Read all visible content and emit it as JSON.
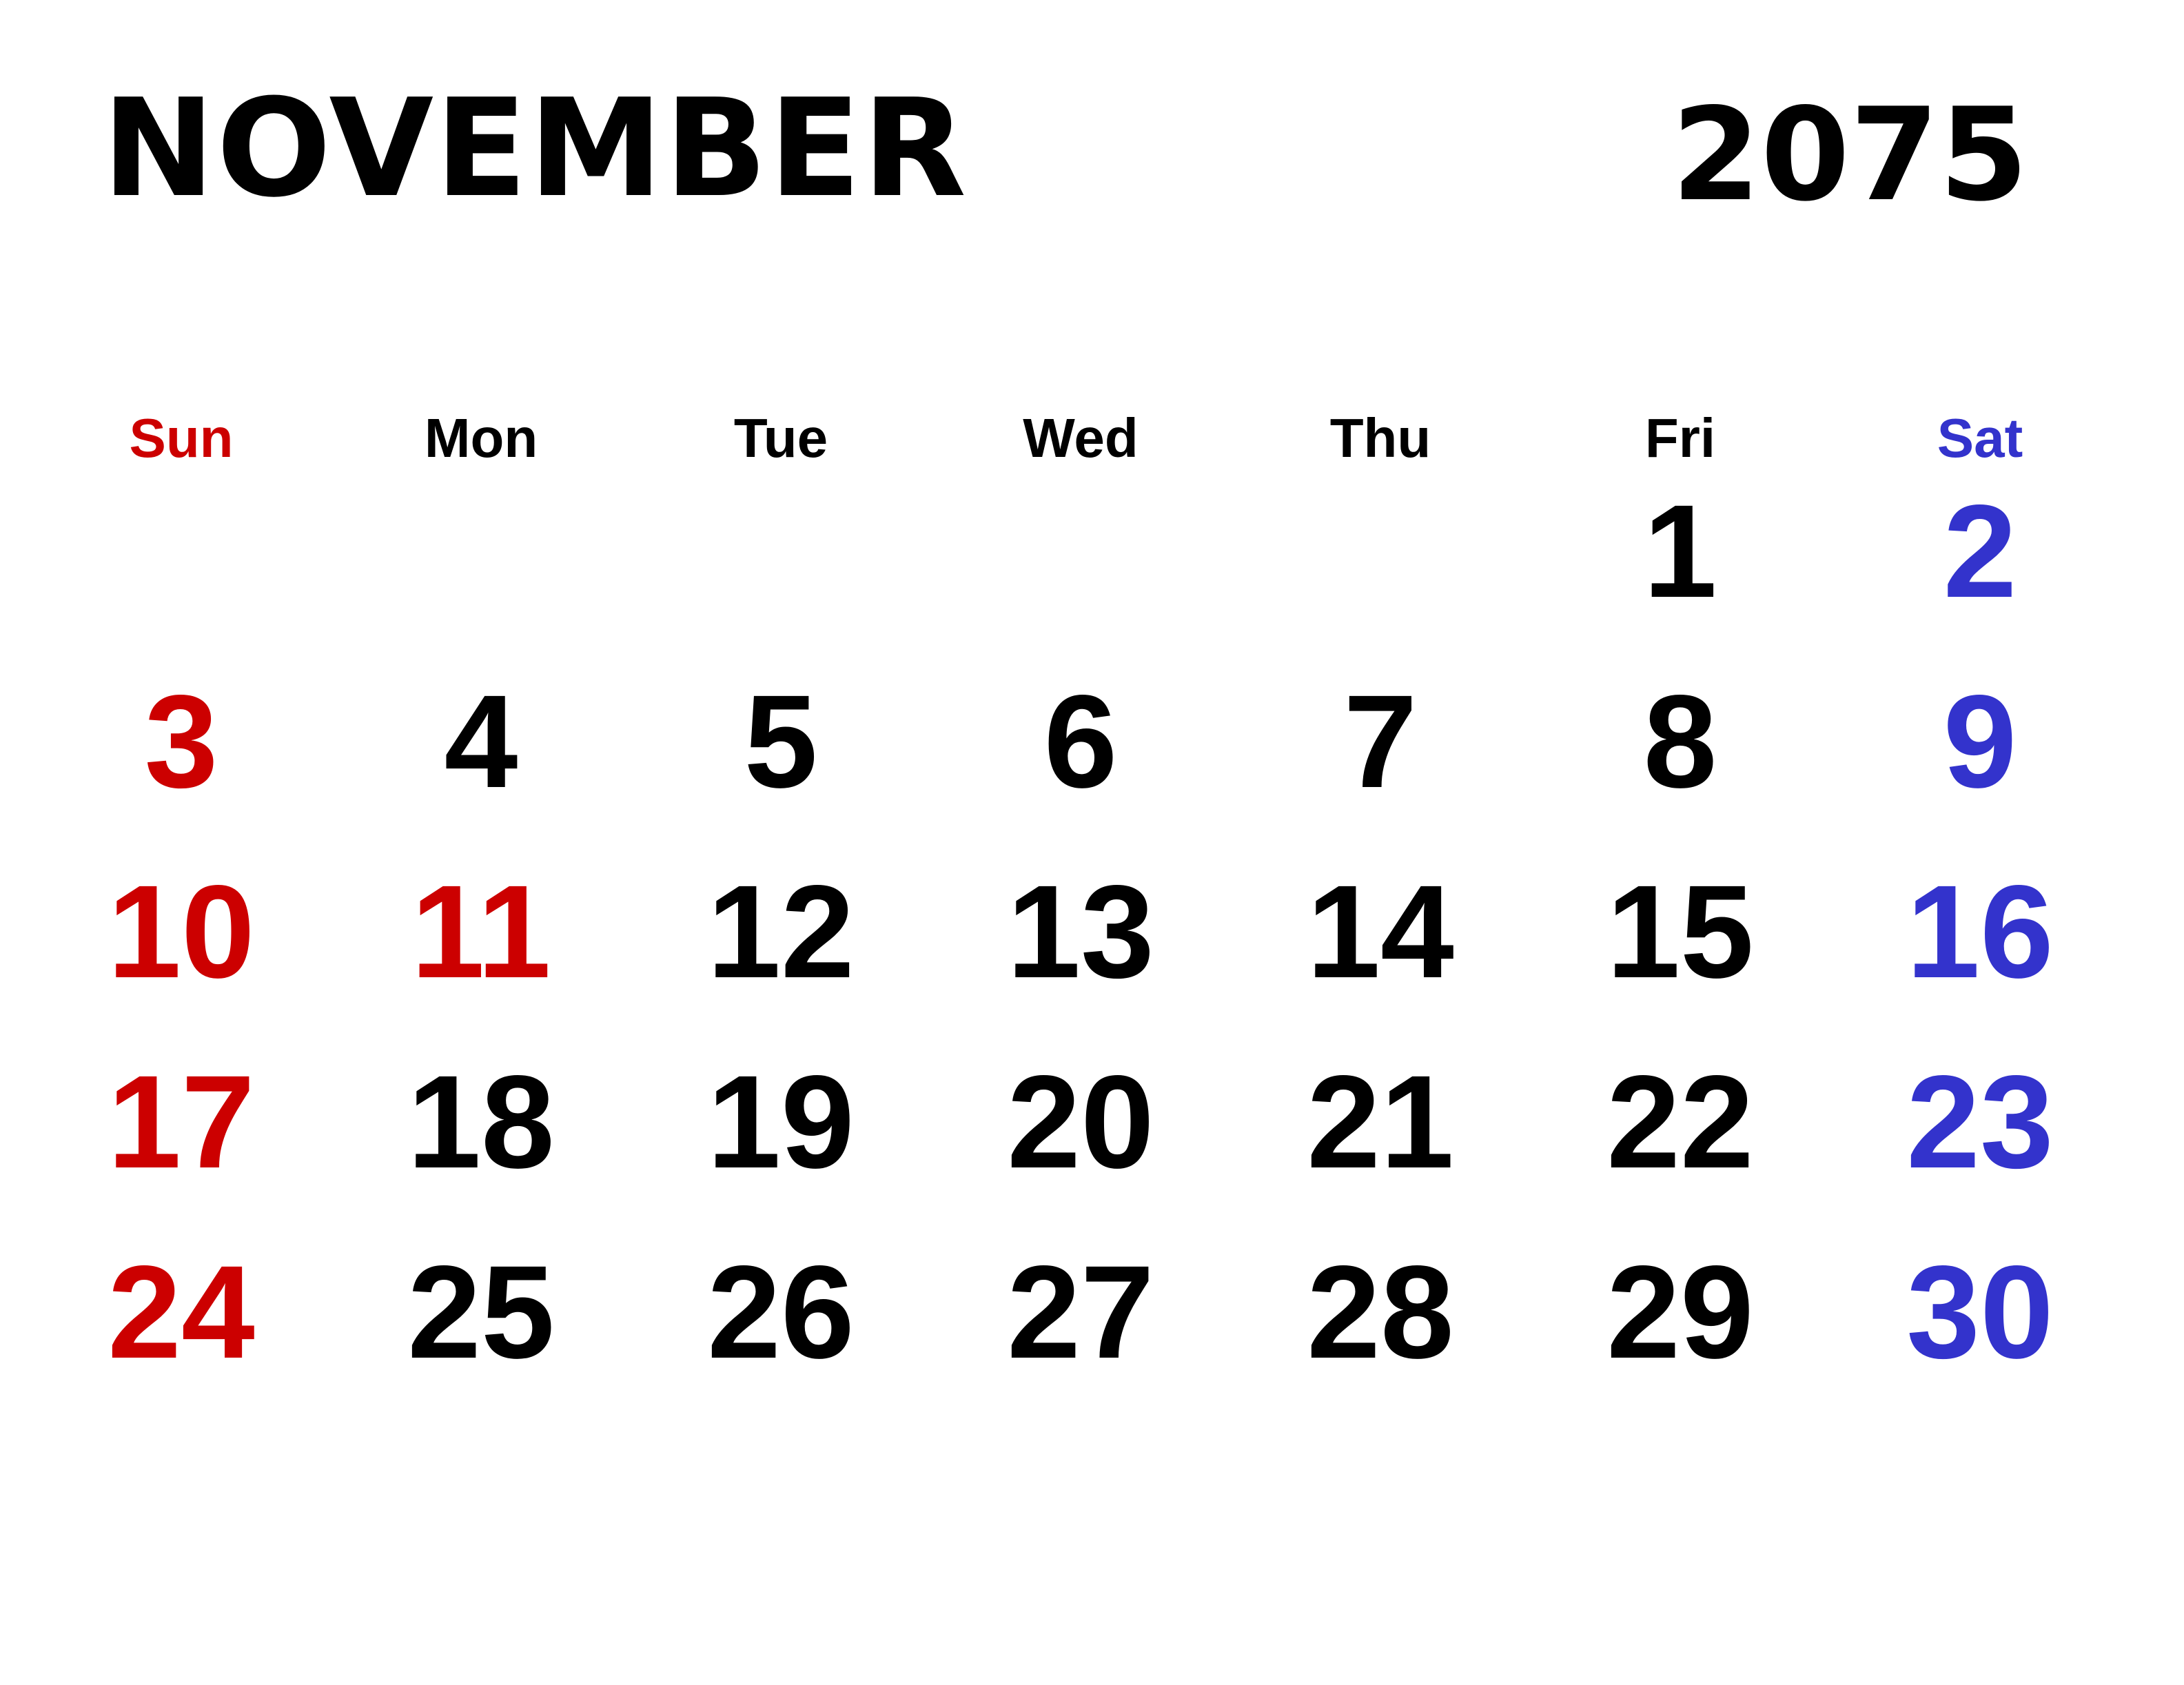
{
  "header": {
    "month": "NOVEMBER",
    "year": "2075"
  },
  "colors": {
    "sunday": "#cc0000",
    "saturday": "#3333cc",
    "holiday": "#cc0000",
    "weekday": "#000000"
  },
  "weekdays": [
    {
      "label": "Sun",
      "color": "#cc0000"
    },
    {
      "label": "Mon",
      "color": "#000000"
    },
    {
      "label": "Tue",
      "color": "#000000"
    },
    {
      "label": "Wed",
      "color": "#000000"
    },
    {
      "label": "Thu",
      "color": "#000000"
    },
    {
      "label": "Fri",
      "color": "#000000"
    },
    {
      "label": "Sat",
      "color": "#3333cc"
    }
  ],
  "weeks": [
    [
      null,
      null,
      null,
      null,
      null,
      {
        "day": "1",
        "color": "#000000"
      },
      {
        "day": "2",
        "color": "#3333cc"
      }
    ],
    [
      {
        "day": "3",
        "color": "#cc0000"
      },
      {
        "day": "4",
        "color": "#000000"
      },
      {
        "day": "5",
        "color": "#000000"
      },
      {
        "day": "6",
        "color": "#000000"
      },
      {
        "day": "7",
        "color": "#000000"
      },
      {
        "day": "8",
        "color": "#000000"
      },
      {
        "day": "9",
        "color": "#3333cc"
      }
    ],
    [
      {
        "day": "10",
        "color": "#cc0000"
      },
      {
        "day": "11",
        "color": "#cc0000"
      },
      {
        "day": "12",
        "color": "#000000"
      },
      {
        "day": "13",
        "color": "#000000"
      },
      {
        "day": "14",
        "color": "#000000"
      },
      {
        "day": "15",
        "color": "#000000"
      },
      {
        "day": "16",
        "color": "#3333cc"
      }
    ],
    [
      {
        "day": "17",
        "color": "#cc0000"
      },
      {
        "day": "18",
        "color": "#000000"
      },
      {
        "day": "19",
        "color": "#000000"
      },
      {
        "day": "20",
        "color": "#000000"
      },
      {
        "day": "21",
        "color": "#000000"
      },
      {
        "day": "22",
        "color": "#000000"
      },
      {
        "day": "23",
        "color": "#3333cc"
      }
    ],
    [
      {
        "day": "24",
        "color": "#cc0000"
      },
      {
        "day": "25",
        "color": "#000000"
      },
      {
        "day": "26",
        "color": "#000000"
      },
      {
        "day": "27",
        "color": "#000000"
      },
      {
        "day": "28",
        "color": "#000000"
      },
      {
        "day": "29",
        "color": "#000000"
      },
      {
        "day": "30",
        "color": "#3333cc"
      }
    ]
  ]
}
